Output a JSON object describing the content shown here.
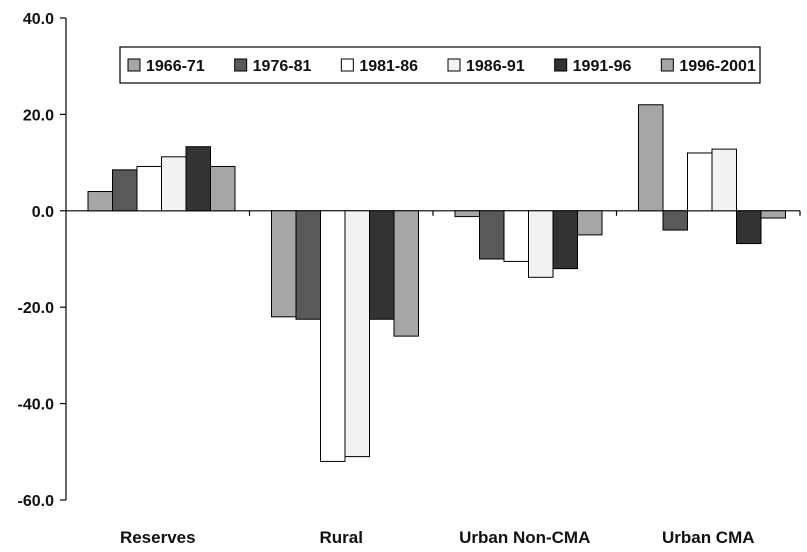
{
  "chart_data": {
    "type": "bar",
    "categories": [
      "Reserves",
      "Rural",
      "Urban Non-CMA",
      "Urban CMA"
    ],
    "series": [
      {
        "name": "1966-71",
        "color": "#a6a6a6",
        "values": [
          4.0,
          -22.0,
          -1.2,
          22.0
        ]
      },
      {
        "name": "1976-81",
        "color": "#595959",
        "values": [
          8.5,
          -22.5,
          -10.0,
          -4.0
        ]
      },
      {
        "name": "1981-86",
        "color": "#ffffff",
        "values": [
          9.2,
          -52.0,
          -10.5,
          12.0
        ]
      },
      {
        "name": "1986-91",
        "color": "#f2f2f2",
        "values": [
          11.2,
          -51.0,
          -13.8,
          12.8
        ]
      },
      {
        "name": "1991-96",
        "color": "#333333",
        "values": [
          13.3,
          -22.5,
          -12.0,
          -6.8
        ]
      },
      {
        "name": "1996-2001",
        "color": "#a6a6a6",
        "values": [
          9.2,
          -26.0,
          -5.0,
          -1.5
        ]
      }
    ],
    "y_ticks": [
      "40.0",
      "20.0",
      "0.0",
      "-20.0",
      "-40.0",
      "-60.0"
    ],
    "ylim": [
      -60,
      40
    ],
    "title": "",
    "xlabel": "",
    "ylabel": "",
    "legend_position": "top",
    "grid": false
  }
}
